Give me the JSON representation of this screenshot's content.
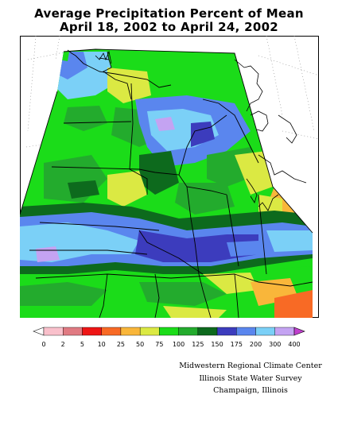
{
  "title": {
    "line1": "Average Precipitation Percent of Mean",
    "line2": "April 18, 2002 to April 24, 2002"
  },
  "legend": {
    "bins": [
      {
        "label": "0",
        "color": "#ffffff"
      },
      {
        "label": "2",
        "color": "#f9c0cb"
      },
      {
        "label": "5",
        "color": "#e07a82"
      },
      {
        "label": "10",
        "color": "#ee1515"
      },
      {
        "label": "25",
        "color": "#f86a25"
      },
      {
        "label": "50",
        "color": "#f9b63a"
      },
      {
        "label": "75",
        "color": "#dbe943"
      },
      {
        "label": "100",
        "color": "#1bdc19"
      },
      {
        "label": "125",
        "color": "#23ab2d"
      },
      {
        "label": "150",
        "color": "#0d6a1d"
      },
      {
        "label": "175",
        "color": "#3c3cbd"
      },
      {
        "label": "200",
        "color": "#5a86ee"
      },
      {
        "label": "300",
        "color": "#7bd0f7"
      },
      {
        "label": "400",
        "color": "#c4a3f2"
      }
    ],
    "overflow_color": "#c03fcd"
  },
  "credits": {
    "line1": "Midwestern Regional Climate Center",
    "line2": "Illinois State Water Survey",
    "line3": "Champaign, Illinois"
  }
}
